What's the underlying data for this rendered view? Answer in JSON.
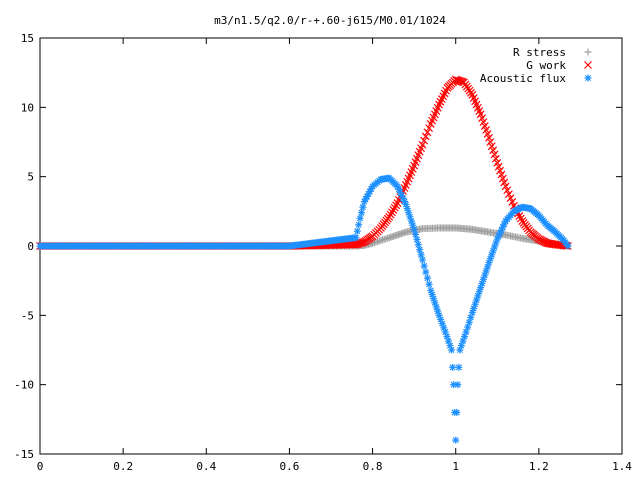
{
  "chart_data": {
    "type": "scatter",
    "title": "m3/n1.5/q2.0/r-+.60-j615/M0.01/1024",
    "xlabel": "",
    "ylabel": "",
    "xlim": [
      0,
      1.4
    ],
    "ylim": [
      -15,
      15
    ],
    "xticks": [
      "0",
      "0.2",
      "0.4",
      "0.6",
      "0.8",
      "1",
      "1.2",
      "1.4"
    ],
    "yticks": [
      "15",
      "10",
      "5",
      "0",
      "-5",
      "-10",
      "-15"
    ],
    "legend_position": "top-right",
    "grid": false,
    "series": [
      {
        "name": "R stress",
        "marker": "+",
        "color": "#a0a0a0",
        "x": [
          0.0,
          0.2,
          0.4,
          0.6,
          0.76,
          0.78,
          0.8,
          0.84,
          0.88,
          0.92,
          0.96,
          1.0,
          1.04,
          1.08,
          1.12,
          1.16,
          1.2,
          1.24,
          1.27
        ],
        "y": [
          0,
          0,
          0,
          0,
          0,
          0.05,
          0.2,
          0.6,
          1.0,
          1.25,
          1.3,
          1.3,
          1.2,
          1.0,
          0.8,
          0.55,
          0.35,
          0.15,
          0.05
        ]
      },
      {
        "name": "G work",
        "marker": "x",
        "color": "#ff0000",
        "x": [
          0.0,
          0.2,
          0.4,
          0.6,
          0.76,
          0.78,
          0.8,
          0.82,
          0.84,
          0.86,
          0.88,
          0.9,
          0.92,
          0.94,
          0.96,
          0.98,
          1.0,
          1.02,
          1.04,
          1.06,
          1.08,
          1.1,
          1.12,
          1.14,
          1.16,
          1.18,
          1.2,
          1.22,
          1.24,
          1.27
        ],
        "y": [
          0,
          0,
          0,
          0,
          0.1,
          0.3,
          0.7,
          1.3,
          2.1,
          3.1,
          4.4,
          5.8,
          7.3,
          8.8,
          10.2,
          11.4,
          12.0,
          11.8,
          10.9,
          9.5,
          7.8,
          6.0,
          4.3,
          2.9,
          1.8,
          1.0,
          0.5,
          0.2,
          0.1,
          0.0
        ]
      },
      {
        "name": "Acoustic flux",
        "marker": "*",
        "color": "#1e90ff",
        "x": [
          0.0,
          0.2,
          0.4,
          0.6,
          0.76,
          0.77,
          0.78,
          0.8,
          0.82,
          0.84,
          0.86,
          0.88,
          0.9,
          0.92,
          0.94,
          0.96,
          0.975,
          0.99,
          0.995,
          1.0,
          1.005,
          1.01,
          1.025,
          1.04,
          1.06,
          1.08,
          1.1,
          1.12,
          1.14,
          1.16,
          1.18,
          1.2,
          1.22,
          1.24,
          1.26,
          1.27
        ],
        "y": [
          0,
          0,
          0,
          0,
          0.6,
          2.0,
          3.2,
          4.3,
          4.8,
          4.9,
          4.3,
          3.0,
          1.2,
          -1.0,
          -3.2,
          -5.0,
          -6.2,
          -7.5,
          -10.0,
          -14.0,
          -10.0,
          -7.5,
          -6.2,
          -4.8,
          -3.0,
          -1.2,
          0.5,
          1.8,
          2.5,
          2.8,
          2.7,
          2.2,
          1.5,
          1.0,
          0.4,
          0.0
        ]
      }
    ]
  }
}
